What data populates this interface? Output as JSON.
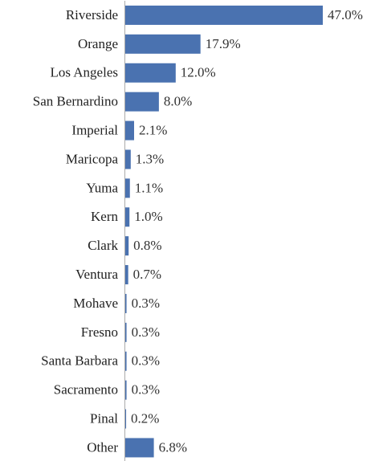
{
  "chart_data": {
    "type": "bar",
    "orientation": "horizontal",
    "categories": [
      "Riverside",
      "Orange",
      "Los Angeles",
      "San Bernardino",
      "Imperial",
      "Maricopa",
      "Yuma",
      "Kern",
      "Clark",
      "Ventura",
      "Mohave",
      "Fresno",
      "Santa Barbara",
      "Sacramento",
      "Pinal",
      "Other"
    ],
    "values": [
      47.0,
      17.9,
      12.0,
      8.0,
      2.1,
      1.3,
      1.1,
      1.0,
      0.8,
      0.7,
      0.3,
      0.3,
      0.3,
      0.3,
      0.2,
      6.8
    ],
    "value_labels": [
      "47.0%",
      "17.9%",
      "12.0%",
      "8.0%",
      "2.1%",
      "1.3%",
      "1.1%",
      "1.0%",
      "0.8%",
      "0.7%",
      "0.3%",
      "0.3%",
      "0.3%",
      "0.3%",
      "0.2%",
      "6.8%"
    ],
    "color": "#4a72b0"
  }
}
